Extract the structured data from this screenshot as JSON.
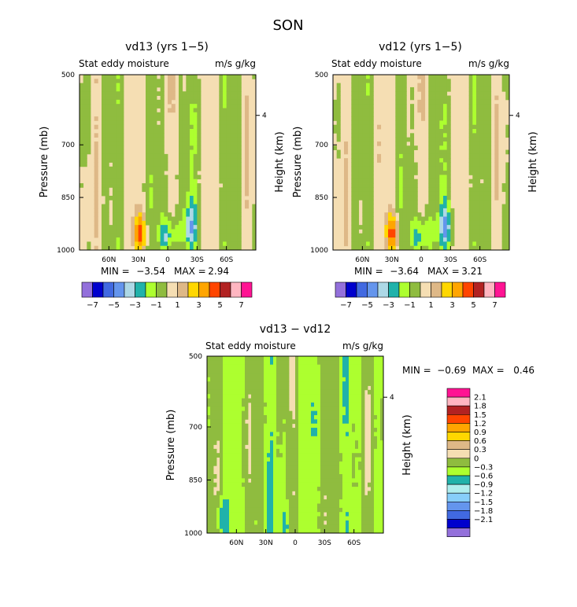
{
  "page_title": "SON",
  "palettes": {
    "full": [
      "#9370db",
      "#0000cd",
      "#4169e1",
      "#6495ed",
      "#add8e6",
      "#20b2aa",
      "#adff2f",
      "#8fbc3f",
      "#f5deb3",
      "#deb887",
      "#ffd700",
      "#ffa500",
      "#ff4500",
      "#b22222",
      "#ffb6c1",
      "#ff1493"
    ],
    "diff": [
      "#9370db",
      "#0000cd",
      "#4169e1",
      "#6495ed",
      "#87cefa",
      "#afeeee",
      "#20b2aa",
      "#adff2f",
      "#8fbc3f",
      "#f5deb3",
      "#deb887",
      "#ffd700",
      "#ffa500",
      "#ff4500",
      "#b22222",
      "#ffb6c1",
      "#ff1493"
    ]
  },
  "chart_data": [
    {
      "id": "p1",
      "type": "heatmap",
      "title": "vd13 (yrs 1−5)",
      "subtitle_left": "Stat eddy moisture",
      "subtitle_right": "m/s g/kg",
      "ylabel": "Pressure (mb)",
      "ylabel2": "Height (km)",
      "y_ticks": [
        {
          "v": 500,
          "label": "500"
        },
        {
          "v": 700,
          "label": "700"
        },
        {
          "v": 850,
          "label": "850"
        },
        {
          "v": 1000,
          "label": "1000"
        }
      ],
      "y2_ticks": [
        {
          "v": 4,
          "label": "4"
        }
      ],
      "x_ticks": [
        {
          "v": -60,
          "label": "60N"
        },
        {
          "v": -30,
          "label": "30N"
        },
        {
          "v": 0,
          "label": "0"
        },
        {
          "v": 30,
          "label": "30S"
        },
        {
          "v": 60,
          "label": "60S"
        }
      ],
      "xlim": [
        -90,
        90
      ],
      "ylim": [
        500,
        1000
      ],
      "min_label": "MIN =",
      "min_value": "−3.54",
      "max_label": "MAX =",
      "max_value": "2.94",
      "colorbar_labels": [
        "−7",
        "−5",
        "−3",
        "−1",
        "1",
        "3",
        "5",
        "7"
      ],
      "field": {
        "xmin": 1,
        "xmax": 3
      },
      "features": [
        {
          "x": -28,
          "y": 960,
          "v": 3
        },
        {
          "x": -30,
          "y": 930,
          "v": 1.5
        },
        {
          "x": -56,
          "y": 900,
          "v": 0.5
        },
        {
          "x": -2,
          "y": 960,
          "v": -3
        },
        {
          "x": 23,
          "y": 940,
          "v": -3.54
        },
        {
          "x": 7,
          "y": 950,
          "v": -1.5
        },
        {
          "x": 24,
          "y": 870,
          "v": -1.2
        }
      ]
    },
    {
      "id": "p2",
      "type": "heatmap",
      "title": "vd12 (yrs 1−5)",
      "subtitle_left": "Stat eddy moisture",
      "subtitle_right": "m/s g/kg",
      "ylabel": "Pressure (mb)",
      "ylabel2": "Height (km)",
      "y_ticks": [
        {
          "v": 500,
          "label": "500"
        },
        {
          "v": 700,
          "label": "700"
        },
        {
          "v": 850,
          "label": "850"
        },
        {
          "v": 1000,
          "label": "1000"
        }
      ],
      "y2_ticks": [
        {
          "v": 4,
          "label": "4"
        }
      ],
      "x_ticks": [
        {
          "v": -60,
          "label": "60N"
        },
        {
          "v": -30,
          "label": "30N"
        },
        {
          "v": 0,
          "label": "0"
        },
        {
          "v": 30,
          "label": "30S"
        },
        {
          "v": 60,
          "label": "60S"
        }
      ],
      "xlim": [
        -90,
        90
      ],
      "ylim": [
        500,
        1000
      ],
      "min_label": "MIN =",
      "min_value": "−3.64",
      "max_label": "MAX =",
      "max_value": "3.21",
      "colorbar_labels": [
        "−7",
        "−5",
        "−3",
        "−1",
        "1",
        "3",
        "5",
        "7"
      ],
      "field": {
        "xmin": 1,
        "xmax": 3
      },
      "features": [
        {
          "x": -29,
          "y": 960,
          "v": 3.2
        },
        {
          "x": -31,
          "y": 930,
          "v": 1.5
        },
        {
          "x": -60,
          "y": 910,
          "v": 0.5
        },
        {
          "x": -3,
          "y": 960,
          "v": -3
        },
        {
          "x": 25,
          "y": 940,
          "v": -3.64
        },
        {
          "x": 8,
          "y": 950,
          "v": -1.5
        },
        {
          "x": 25,
          "y": 870,
          "v": -1.2
        }
      ]
    },
    {
      "id": "p3",
      "type": "heatmap",
      "title": "vd13 − vd12",
      "subtitle_left": "Stat eddy moisture",
      "subtitle_right": "m/s g/kg",
      "ylabel": "Pressure (mb)",
      "ylabel2": "Height (km)",
      "y_ticks": [
        {
          "v": 500,
          "label": "500"
        },
        {
          "v": 700,
          "label": "700"
        },
        {
          "v": 850,
          "label": "850"
        },
        {
          "v": 1000,
          "label": "1000"
        }
      ],
      "y2_ticks": [
        {
          "v": 4,
          "label": "4"
        }
      ],
      "x_ticks": [
        {
          "v": -60,
          "label": "60N"
        },
        {
          "v": -30,
          "label": "30N"
        },
        {
          "v": 0,
          "label": "0"
        },
        {
          "v": 30,
          "label": "30S"
        },
        {
          "v": 60,
          "label": "60S"
        }
      ],
      "xlim": [
        -90,
        90
      ],
      "ylim": [
        500,
        1000
      ],
      "min_label": "MIN =",
      "min_value": "−0.69",
      "max_label": "MAX =",
      "max_value": "0.46",
      "colorbar_labels": [
        "2.1",
        "1.8",
        "1.5",
        "1.2",
        "0.9",
        "0.6",
        "0.3",
        "0",
        "−0.3",
        "−0.6",
        "−0.9",
        "−1.2",
        "−1.5",
        "−1.8",
        "−2.1"
      ],
      "field": {
        "xmin": 2,
        "xmax": 3
      },
      "features": [
        {
          "x": -75,
          "y": 960,
          "v": -0.5
        },
        {
          "x": -10,
          "y": 980,
          "v": -0.45
        }
      ]
    }
  ]
}
